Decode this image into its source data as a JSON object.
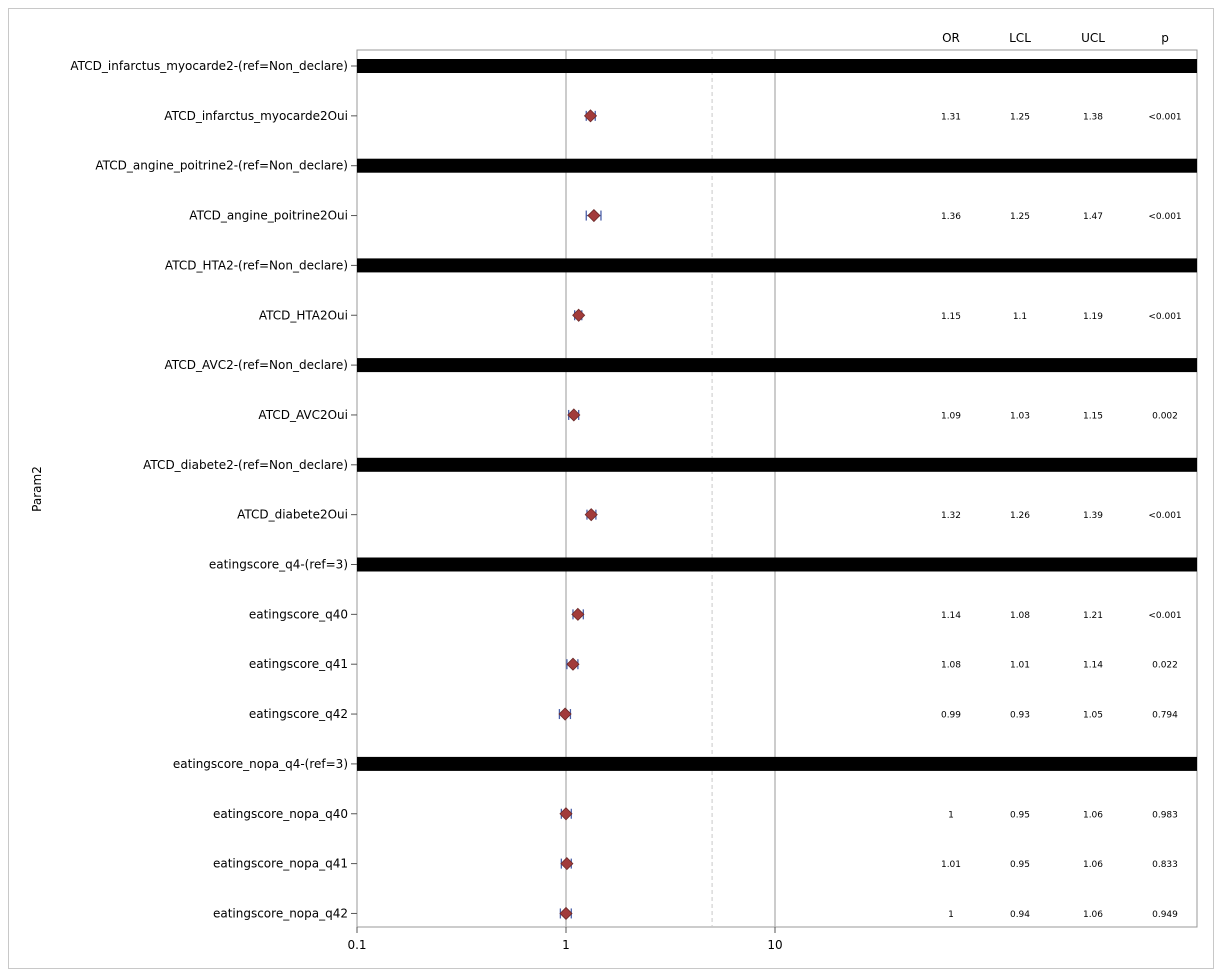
{
  "chart_data": {
    "type": "forest",
    "y_axis_title": "Param2",
    "x_axis": {
      "scale": "log",
      "range": [
        0.1,
        10000
      ],
      "ticks": [
        "0.1",
        "1",
        "10"
      ],
      "tick_values": [
        0.1,
        1,
        10
      ],
      "gridlines": [
        1,
        10
      ],
      "reference_line_dashed": 5
    },
    "columns": [
      "OR",
      "LCL",
      "UCL",
      "p"
    ],
    "rows": [
      {
        "label": "ATCD_infarctus_myocarde2-(ref=Non_declare)",
        "header": true
      },
      {
        "label": "ATCD_infarctus_myocarde2Oui",
        "or": 1.31,
        "lcl": 1.25,
        "ucl": 1.38,
        "or_text": "1.31",
        "lcl_text": "1.25",
        "ucl_text": "1.38",
        "p": "<0.001"
      },
      {
        "label": "ATCD_angine_poitrine2-(ref=Non_declare)",
        "header": true
      },
      {
        "label": "ATCD_angine_poitrine2Oui",
        "or": 1.36,
        "lcl": 1.25,
        "ucl": 1.47,
        "or_text": "1.36",
        "lcl_text": "1.25",
        "ucl_text": "1.47",
        "p": "<0.001"
      },
      {
        "label": "ATCD_HTA2-(ref=Non_declare)",
        "header": true
      },
      {
        "label": "ATCD_HTA2Oui",
        "or": 1.15,
        "lcl": 1.1,
        "ucl": 1.19,
        "or_text": "1.15",
        "lcl_text": "1.1",
        "ucl_text": "1.19",
        "p": "<0.001"
      },
      {
        "label": "ATCD_AVC2-(ref=Non_declare)",
        "header": true
      },
      {
        "label": "ATCD_AVC2Oui",
        "or": 1.09,
        "lcl": 1.03,
        "ucl": 1.15,
        "or_text": "1.09",
        "lcl_text": "1.03",
        "ucl_text": "1.15",
        "p": "0.002"
      },
      {
        "label": "ATCD_diabete2-(ref=Non_declare)",
        "header": true
      },
      {
        "label": "ATCD_diabete2Oui",
        "or": 1.32,
        "lcl": 1.26,
        "ucl": 1.39,
        "or_text": "1.32",
        "lcl_text": "1.26",
        "ucl_text": "1.39",
        "p": "<0.001"
      },
      {
        "label": "eatingscore_q4-(ref=3)",
        "header": true
      },
      {
        "label": "eatingscore_q40",
        "or": 1.14,
        "lcl": 1.08,
        "ucl": 1.21,
        "or_text": "1.14",
        "lcl_text": "1.08",
        "ucl_text": "1.21",
        "p": "<0.001"
      },
      {
        "label": "eatingscore_q41",
        "or": 1.08,
        "lcl": 1.01,
        "ucl": 1.14,
        "or_text": "1.08",
        "lcl_text": "1.01",
        "ucl_text": "1.14",
        "p": "0.022"
      },
      {
        "label": "eatingscore_q42",
        "or": 0.99,
        "lcl": 0.93,
        "ucl": 1.05,
        "or_text": "0.99",
        "lcl_text": "0.93",
        "ucl_text": "1.05",
        "p": "0.794"
      },
      {
        "label": "eatingscore_nopa_q4-(ref=3)",
        "header": true
      },
      {
        "label": "eatingscore_nopa_q40",
        "or": 1,
        "lcl": 0.95,
        "ucl": 1.06,
        "or_text": "1",
        "lcl_text": "0.95",
        "ucl_text": "1.06",
        "p": "0.983"
      },
      {
        "label": "eatingscore_nopa_q41",
        "or": 1.01,
        "lcl": 0.95,
        "ucl": 1.06,
        "or_text": "1.01",
        "lcl_text": "0.95",
        "ucl_text": "1.06",
        "p": "0.833"
      },
      {
        "label": "eatingscore_nopa_q42",
        "or": 1,
        "lcl": 0.94,
        "ucl": 1.06,
        "or_text": "1",
        "lcl_text": "0.94",
        "ucl_text": "1.06",
        "p": "0.949"
      }
    ],
    "colors": {
      "marker_fill": "#A23B3B",
      "marker_stroke": "#6B2A2A",
      "ci_line": "#4A5FA8",
      "grid": "#AAAAAA",
      "dashed_ref": "#C8C8C8",
      "header_band": "#000000",
      "frame": "#999999"
    },
    "legend": "none",
    "grid": true
  }
}
